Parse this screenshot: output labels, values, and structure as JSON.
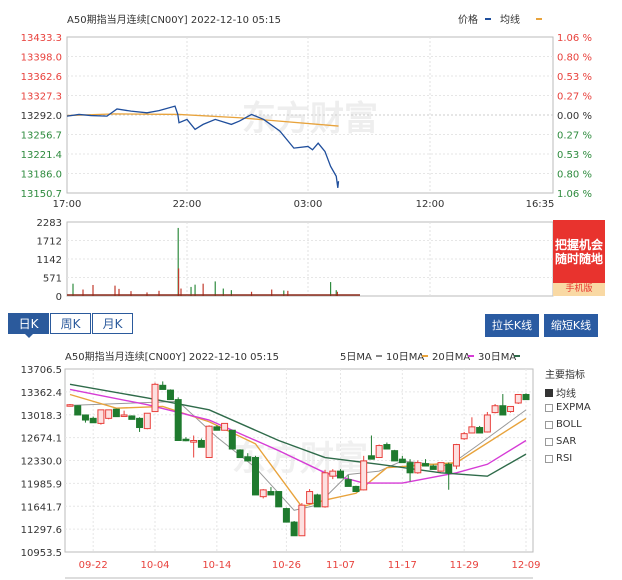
{
  "intraday": {
    "title": "A50期指当月连续[CN00Y] 2022-12-10 05:15",
    "legend": [
      {
        "label": "价格",
        "color": "#1f4e9c"
      },
      {
        "label": "均线",
        "color": "#e8a33c"
      }
    ],
    "y_left_ticks": [
      "13433.3",
      "13398.0",
      "13362.6",
      "13327.3",
      "13292.0",
      "13256.7",
      "13221.4",
      "13186.0",
      "13150.7"
    ],
    "y_right_ticks": [
      "1.06 %",
      "0.80 %",
      "0.53 %",
      "0.27 %",
      "0.00 %",
      "0.27 %",
      "0.53 %",
      "0.80 %",
      "1.06 %"
    ],
    "x_ticks": [
      "17:00",
      "22:00",
      "03:00",
      "12:00",
      "16:35"
    ],
    "ylim": [
      13150.7,
      13433.3
    ],
    "watermark": "东方财富",
    "price": [
      [
        "17:00",
        13290
      ],
      [
        "17:30",
        13293
      ],
      [
        "18:00",
        13291
      ],
      [
        "18:40",
        13290
      ],
      [
        "19:05",
        13303
      ],
      [
        "19:40",
        13299
      ],
      [
        "20:20",
        13296
      ],
      [
        "20:50",
        13300
      ],
      [
        "21:30",
        13308
      ],
      [
        "21:37",
        13293
      ],
      [
        "21:40",
        13278
      ],
      [
        "22:00",
        13284
      ],
      [
        "22:20",
        13266
      ],
      [
        "22:40",
        13275
      ],
      [
        "23:10",
        13284
      ],
      [
        "23:50",
        13275
      ],
      [
        "00:10",
        13281
      ],
      [
        "00:40",
        13293
      ],
      [
        "01:10",
        13284
      ],
      [
        "01:50",
        13263
      ],
      [
        "02:25",
        13232
      ],
      [
        "03:00",
        13235
      ],
      [
        "03:20",
        13229
      ],
      [
        "03:45",
        13241
      ],
      [
        "04:15",
        13226
      ],
      [
        "04:40",
        13199
      ],
      [
        "05:05",
        13181
      ],
      [
        "05:12",
        13160
      ],
      [
        "05:15",
        13172
      ]
    ],
    "average": [
      [
        "17:00",
        13291
      ],
      [
        "19:00",
        13294
      ],
      [
        "21:40",
        13293
      ],
      [
        "00:10",
        13287
      ],
      [
        "05:15",
        13272
      ]
    ]
  },
  "volume": {
    "y_ticks": [
      "2283",
      "1712",
      "1142",
      "571",
      "0"
    ],
    "ylim": [
      0,
      2283
    ],
    "bars": [
      [
        "17:15",
        380,
        "green"
      ],
      [
        "17:40",
        200,
        "red"
      ],
      [
        "18:05",
        340,
        "red"
      ],
      [
        "19:00",
        320,
        "red"
      ],
      [
        "19:10",
        220,
        "red"
      ],
      [
        "19:40",
        150,
        "red"
      ],
      [
        "20:20",
        110,
        "red"
      ],
      [
        "20:50",
        160,
        "red"
      ],
      [
        "21:38",
        2100,
        "green"
      ],
      [
        "21:39",
        850,
        "red"
      ],
      [
        "21:45",
        230,
        "red"
      ],
      [
        "22:10",
        280,
        "green"
      ],
      [
        "22:20",
        350,
        "green"
      ],
      [
        "22:40",
        380,
        "red"
      ],
      [
        "23:10",
        450,
        "green"
      ],
      [
        "23:30",
        230,
        "green"
      ],
      [
        "23:50",
        180,
        "green"
      ],
      [
        "00:40",
        130,
        "red"
      ],
      [
        "01:30",
        200,
        "red"
      ],
      [
        "02:00",
        170,
        "green"
      ],
      [
        "02:10",
        160,
        "red"
      ],
      [
        "04:40",
        430,
        "green"
      ],
      [
        "05:05",
        180,
        "green"
      ],
      [
        "05:10",
        130,
        "red"
      ]
    ]
  },
  "ad": {
    "text": "把握机会 随时随地",
    "sub": "手机版"
  },
  "period_tabs": [
    {
      "label": "日K",
      "active": true
    },
    {
      "label": "周K",
      "active": false
    },
    {
      "label": "月K",
      "active": false
    }
  ],
  "buttons": {
    "zoom_out": "拉长K线",
    "zoom_in": "缩短K线"
  },
  "kline": {
    "title": "A50期指当月连续[CN00Y] 2022-12-10 05:15",
    "ma_legend": [
      {
        "label": "5日MA",
        "color": "#888888"
      },
      {
        "label": "10日MA",
        "color": "#e8a33c"
      },
      {
        "label": "20日MA",
        "color": "#d63cd6"
      },
      {
        "label": "30日MA",
        "color": "#2f6b4a"
      }
    ],
    "y_ticks": [
      "13706.5",
      "13362.4",
      "13018.3",
      "12674.1",
      "12330.0",
      "11985.9",
      "11641.7",
      "11297.6",
      "10953.5"
    ],
    "ylim": [
      10953.5,
      13706.5
    ],
    "x_ticks": [
      {
        "label": "09-22",
        "index": 4
      },
      {
        "label": "10-04",
        "index": 12
      },
      {
        "label": "10-14",
        "index": 20
      },
      {
        "label": "10-26",
        "index": 29
      },
      {
        "label": "11-07",
        "index": 36
      },
      {
        "label": "11-17",
        "index": 44
      },
      {
        "label": "11-29",
        "index": 52
      },
      {
        "label": "12-09",
        "index": 60
      }
    ],
    "up_color": "#e8413c",
    "down_color": "#1f7a2e",
    "candles_ohlc": [
      [
        13150,
        13180,
        13140,
        13169
      ],
      [
        13154,
        13160,
        13010,
        13015
      ],
      [
        13015,
        13020,
        12900,
        12939
      ],
      [
        12964,
        12990,
        12900,
        12898
      ],
      [
        12888,
        13000,
        12870,
        13092
      ],
      [
        12964,
        13090,
        12950,
        13092
      ],
      [
        13102,
        13110,
        12990,
        12990
      ],
      [
        13000,
        13080,
        12990,
        13015
      ],
      [
        13000,
        13010,
        12949,
        12949
      ],
      [
        12964,
        12980,
        12760,
        12826
      ],
      [
        12810,
        13041,
        12800,
        13041
      ],
      [
        13066,
        13500,
        13060,
        13476
      ],
      [
        13461,
        13520,
        13399,
        13399
      ],
      [
        13389,
        13400,
        13246,
        13246
      ],
      [
        13246,
        13280,
        12631,
        12631
      ],
      [
        12650,
        12680,
        12620,
        12631
      ],
      [
        12606,
        12706,
        12375,
        12631
      ],
      [
        12631,
        12660,
        12529,
        12529
      ],
      [
        12375,
        12860,
        12375,
        12846
      ],
      [
        12836,
        12860,
        12785,
        12785
      ],
      [
        12785,
        12870,
        12780,
        12888
      ],
      [
        12785,
        12790,
        12503,
        12503
      ],
      [
        12488,
        12500,
        12375,
        12375
      ],
      [
        12386,
        12440,
        12324,
        12324
      ],
      [
        12375,
        12400,
        11812,
        11812
      ],
      [
        11786,
        11900,
        11760,
        11888
      ],
      [
        11863,
        11930,
        11812,
        11812
      ],
      [
        11863,
        11870,
        11633,
        11633
      ],
      [
        11607,
        11620,
        11403,
        11403
      ],
      [
        11403,
        11420,
        11198,
        11198
      ],
      [
        11198,
        11690,
        11198,
        11658
      ],
      [
        11684,
        11900,
        11670,
        11863
      ],
      [
        11812,
        11830,
        11633,
        11633
      ],
      [
        11633,
        12190,
        11620,
        12145
      ],
      [
        12094,
        12200,
        12050,
        12170
      ],
      [
        12170,
        12200,
        12068,
        12068
      ],
      [
        12042,
        12110,
        11940,
        11940
      ],
      [
        11940,
        11950,
        11863,
        11863
      ],
      [
        11888,
        12400,
        11880,
        12324
      ],
      [
        12401,
        12706,
        12350,
        12350
      ],
      [
        12375,
        12570,
        12370,
        12555
      ],
      [
        12570,
        12600,
        12503,
        12503
      ],
      [
        12478,
        12490,
        12324,
        12324
      ],
      [
        12350,
        12400,
        12298,
        12298
      ],
      [
        12298,
        12350,
        12016,
        12145
      ],
      [
        12145,
        12330,
        12130,
        12298
      ],
      [
        12283,
        12350,
        12247,
        12247
      ],
      [
        12247,
        12270,
        12196,
        12196
      ],
      [
        12170,
        12300,
        12160,
        12298
      ],
      [
        12273,
        12300,
        11890,
        12145
      ],
      [
        12247,
        12580,
        12200,
        12570
      ],
      [
        12657,
        12760,
        12640,
        12734
      ],
      [
        12744,
        12980,
        12740,
        12836
      ],
      [
        12826,
        12850,
        12744,
        12744
      ],
      [
        12759,
        13060,
        12750,
        13015
      ],
      [
        13051,
        13180,
        13040,
        13154
      ],
      [
        13154,
        13330,
        13020,
        13015
      ],
      [
        13067,
        13150,
        13050,
        13143
      ],
      [
        13195,
        13330,
        13180,
        13323
      ],
      [
        13323,
        13340,
        13246,
        13246
      ]
    ],
    "ma": {
      "ma5": [
        [
          1,
          13160
        ],
        [
          15,
          13220
        ],
        [
          20,
          12682
        ],
        [
          25,
          12222
        ],
        [
          30,
          11581
        ],
        [
          33,
          11660
        ],
        [
          37,
          12119
        ],
        [
          41,
          12170
        ],
        [
          44,
          12324
        ],
        [
          50,
          12247
        ],
        [
          54,
          12580
        ],
        [
          60,
          13092
        ]
      ],
      "ma10": [
        [
          1,
          13323
        ],
        [
          7,
          13117
        ],
        [
          13,
          13143
        ],
        [
          19,
          12913
        ],
        [
          25,
          12580
        ],
        [
          31,
          11633
        ],
        [
          34,
          11735
        ],
        [
          38,
          11837
        ],
        [
          42,
          12222
        ],
        [
          51,
          12298
        ],
        [
          60,
          12964
        ]
      ],
      "ma20": [
        [
          1,
          13399
        ],
        [
          11,
          13169
        ],
        [
          19,
          12939
        ],
        [
          28,
          12478
        ],
        [
          34,
          12145
        ],
        [
          39,
          11991
        ],
        [
          44,
          11991
        ],
        [
          51,
          12145
        ],
        [
          55,
          12273
        ],
        [
          60,
          12631
        ]
      ],
      "ma30": [
        [
          1,
          13476
        ],
        [
          11,
          13271
        ],
        [
          19,
          13092
        ],
        [
          28,
          12631
        ],
        [
          34,
          12375
        ],
        [
          41,
          12273
        ],
        [
          49,
          12145
        ],
        [
          55,
          12094
        ],
        [
          60,
          12426
        ]
      ]
    },
    "indicators": {
      "title": "主要指标",
      "items": [
        {
          "label": "均线",
          "checked": true
        },
        {
          "label": "EXPMA",
          "checked": false
        },
        {
          "label": "BOLL",
          "checked": false
        },
        {
          "label": "SAR",
          "checked": false
        },
        {
          "label": "RSI",
          "checked": false
        }
      ]
    }
  }
}
